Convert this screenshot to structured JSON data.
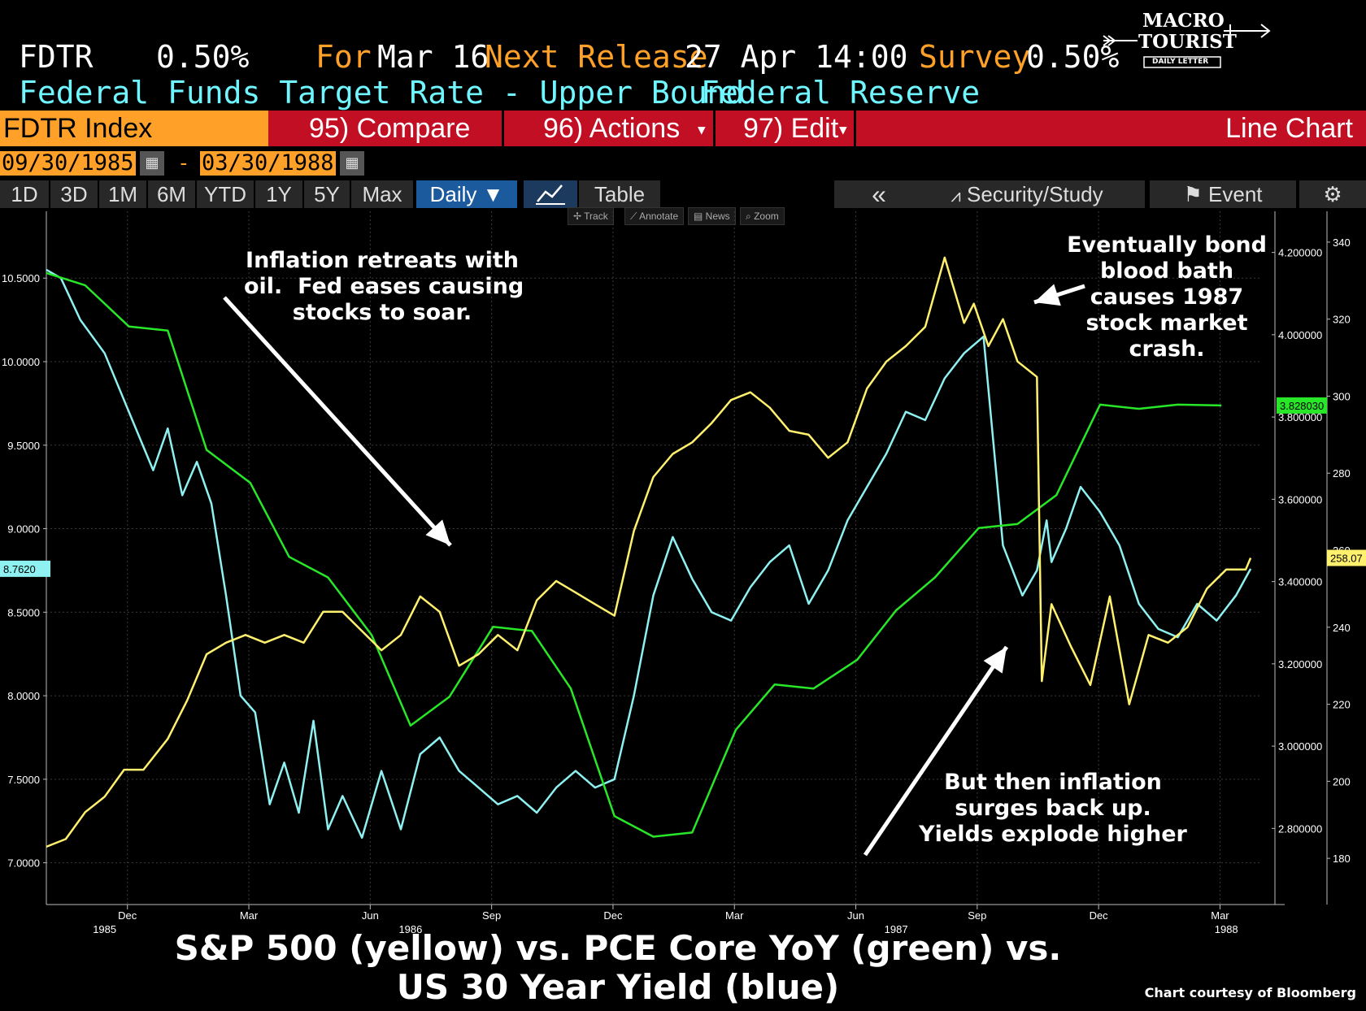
{
  "header": {
    "ticker": "FDTR",
    "value": "0.50%",
    "for_label": "For",
    "for_date": "Mar 16",
    "next_label": "Next Release",
    "next_value": "27 Apr 14:00",
    "survey_label": "Survey",
    "survey_value": "0.50%",
    "description": "Federal Funds Target Rate - Upper Bound",
    "source": "Federal Reserve"
  },
  "logo": {
    "line1": "MACRO",
    "line2": "TOURIST",
    "line3": "DAILY LETTER"
  },
  "command_bar": {
    "index": "FDTR Index",
    "compare": "95) Compare",
    "actions": "96) Actions",
    "edit": "97) Edit",
    "chart_type": "Line Chart"
  },
  "date_range": {
    "start": "09/30/1985",
    "dash": "-",
    "end": "03/30/1988"
  },
  "toolbar": {
    "periods": [
      "1D",
      "3D",
      "1M",
      "6M",
      "YTD",
      "1Y",
      "5Y",
      "Max"
    ],
    "frequency": "Daily ▼",
    "table": "Table",
    "back": "«",
    "security_study": "Security/Study",
    "event": "Event"
  },
  "mini_tools": [
    "Track",
    "Annotate",
    "News",
    "Zoom"
  ],
  "annotations": {
    "a1": "Inflation retreats with\noil.  Fed eases causing\nstocks to soar.",
    "a2": "Eventually bond\nblood bath\ncauses 1987\nstock market\ncrash.",
    "a3": "But then inflation\nsurges back up.\nYields explode higher"
  },
  "caption": {
    "line1": "S&P 500 (yellow) vs. PCE Core YoY (green) vs.",
    "line2": "US 30 Year Yield (blue)"
  },
  "credit": "Chart courtesy of Bloomberg",
  "colors": {
    "yellow": "#fff06e",
    "green": "#28e628",
    "blue": "#8ef0f0",
    "orange": "#ffa028",
    "red": "#c30f23"
  },
  "chart_data": {
    "type": "line",
    "title": "S&P 500 (yellow) vs. PCE Core YoY (green) vs. US 30 Year Yield (blue)",
    "x_range": [
      1985.75,
      1988.25
    ],
    "x_ticks": [
      {
        "x": 1985.917,
        "label": "Dec"
      },
      {
        "x": 1986.167,
        "label": "Mar"
      },
      {
        "x": 1986.417,
        "label": "Jun"
      },
      {
        "x": 1986.667,
        "label": "Sep"
      },
      {
        "x": 1986.917,
        "label": "Dec"
      },
      {
        "x": 1987.167,
        "label": "Mar"
      },
      {
        "x": 1987.417,
        "label": "Jun"
      },
      {
        "x": 1987.667,
        "label": "Sep"
      },
      {
        "x": 1987.917,
        "label": "Dec"
      },
      {
        "x": 1988.167,
        "label": "Mar"
      }
    ],
    "year_labels": [
      {
        "x": 1985.87,
        "label": "1985"
      },
      {
        "x": 1986.5,
        "label": "1986"
      },
      {
        "x": 1987.5,
        "label": "1987"
      },
      {
        "x": 1988.18,
        "label": "1988"
      }
    ],
    "left_axis": {
      "range": [
        6.75,
        10.9
      ],
      "ticks": [
        7.0,
        7.5,
        8.0,
        8.5,
        9.0,
        9.5,
        10.0,
        10.5
      ],
      "labels": [
        "7.0000",
        "7.5000",
        "8.0000",
        "8.5000",
        "9.0000",
        "9.5000",
        "10.0000",
        "10.5000"
      ]
    },
    "mid_axis": {
      "range": [
        2.615,
        4.3
      ],
      "ticks": [
        2.8,
        3.0,
        3.2,
        3.4,
        3.6,
        3.8,
        4.0,
        4.2
      ],
      "labels": [
        "2.800000",
        "3.000000",
        "3.200000",
        "3.400000",
        "3.600000",
        "3.800000",
        "4.000000",
        "4.200000"
      ]
    },
    "right_axis": {
      "range": [
        168,
        348
      ],
      "ticks": [
        180,
        200,
        220,
        240,
        260,
        280,
        300,
        320,
        340
      ],
      "labels": [
        "180",
        "200",
        "220",
        "240",
        "260",
        "280",
        "300",
        "320",
        "340"
      ]
    },
    "last_value_tags": {
      "blue": "8.7620",
      "green": "3.828030",
      "yellow": "258.07"
    },
    "series": [
      {
        "name": "US 30 Year Yield",
        "color": "blue",
        "axis": "left",
        "x": [
          1985.75,
          1985.78,
          1985.82,
          1985.87,
          1985.92,
          1985.97,
          1986.0,
          1986.03,
          1986.06,
          1986.09,
          1986.12,
          1986.15,
          1986.18,
          1986.21,
          1986.24,
          1986.27,
          1986.3,
          1986.33,
          1986.36,
          1986.4,
          1986.44,
          1986.48,
          1986.52,
          1986.56,
          1986.6,
          1986.64,
          1986.68,
          1986.72,
          1986.76,
          1986.8,
          1986.84,
          1986.88,
          1986.92,
          1986.96,
          1987.0,
          1987.04,
          1987.08,
          1987.12,
          1987.16,
          1987.2,
          1987.24,
          1987.28,
          1987.32,
          1987.36,
          1987.4,
          1987.44,
          1987.48,
          1987.52,
          1987.56,
          1987.6,
          1987.64,
          1987.68,
          1987.72,
          1987.76,
          1987.79,
          1987.81,
          1987.82,
          1987.85,
          1987.88,
          1987.92,
          1987.96,
          1988.0,
          1988.04,
          1988.08,
          1988.12,
          1988.16,
          1988.2,
          1988.23
        ],
        "values": [
          10.55,
          10.5,
          10.25,
          10.05,
          9.7,
          9.35,
          9.6,
          9.2,
          9.4,
          9.15,
          8.6,
          8.0,
          7.9,
          7.35,
          7.6,
          7.3,
          7.85,
          7.2,
          7.4,
          7.15,
          7.55,
          7.2,
          7.65,
          7.75,
          7.55,
          7.45,
          7.35,
          7.4,
          7.3,
          7.45,
          7.55,
          7.45,
          7.5,
          8.0,
          8.6,
          8.95,
          8.7,
          8.5,
          8.45,
          8.65,
          8.8,
          8.9,
          8.55,
          8.75,
          9.05,
          9.25,
          9.45,
          9.7,
          9.65,
          9.9,
          10.05,
          10.15,
          8.9,
          8.6,
          8.75,
          9.05,
          8.8,
          9.0,
          9.25,
          9.1,
          8.9,
          8.55,
          8.4,
          8.35,
          8.55,
          8.45,
          8.6,
          8.76
        ]
      },
      {
        "name": "PCE Core YoY",
        "color": "green",
        "axis": "mid",
        "x": [
          1985.75,
          1985.83,
          1985.92,
          1986.0,
          1986.08,
          1986.17,
          1986.25,
          1986.33,
          1986.42,
          1986.5,
          1986.58,
          1986.67,
          1986.75,
          1986.83,
          1986.92,
          1987.0,
          1987.08,
          1987.17,
          1987.25,
          1987.33,
          1987.42,
          1987.5,
          1987.58,
          1987.67,
          1987.75,
          1987.83,
          1987.92,
          1988.0,
          1988.08,
          1988.17
        ],
        "values": [
          4.15,
          4.12,
          4.02,
          4.01,
          3.72,
          3.64,
          3.46,
          3.41,
          3.27,
          3.05,
          3.12,
          3.29,
          3.28,
          3.14,
          2.83,
          2.78,
          2.79,
          3.04,
          3.15,
          3.14,
          3.21,
          3.33,
          3.41,
          3.53,
          3.54,
          3.61,
          3.83,
          3.82,
          3.83,
          3.828
        ]
      },
      {
        "name": "S&P 500",
        "color": "yellow",
        "axis": "right",
        "x": [
          1985.75,
          1985.79,
          1985.83,
          1985.87,
          1985.91,
          1985.95,
          1986.0,
          1986.04,
          1986.08,
          1986.12,
          1986.16,
          1986.2,
          1986.24,
          1986.28,
          1986.32,
          1986.36,
          1986.4,
          1986.44,
          1986.48,
          1986.52,
          1986.56,
          1986.6,
          1986.64,
          1986.68,
          1986.72,
          1986.76,
          1986.8,
          1986.84,
          1986.88,
          1986.92,
          1986.96,
          1987.0,
          1987.04,
          1987.08,
          1987.12,
          1987.16,
          1987.2,
          1987.24,
          1987.28,
          1987.32,
          1987.36,
          1987.4,
          1987.44,
          1987.48,
          1987.52,
          1987.56,
          1987.6,
          1987.64,
          1987.66,
          1987.69,
          1987.72,
          1987.75,
          1987.79,
          1987.8,
          1987.82,
          1987.86,
          1987.9,
          1987.94,
          1987.98,
          1988.02,
          1988.06,
          1988.1,
          1988.14,
          1988.18,
          1988.22,
          1988.23
        ],
        "values": [
          183,
          185,
          192,
          196,
          203,
          203,
          211,
          221,
          233,
          236,
          238,
          236,
          238,
          236,
          244,
          244,
          239,
          234,
          238,
          248,
          244,
          230,
          233,
          238,
          234,
          247,
          252,
          249,
          246,
          243,
          265,
          279,
          285,
          288,
          293,
          299,
          301,
          297,
          291,
          290,
          284,
          288,
          302,
          309,
          313,
          318,
          336,
          319,
          324,
          313,
          320,
          309,
          305,
          226,
          246,
          235,
          225,
          248,
          220,
          238,
          236,
          240,
          250,
          255,
          255,
          258
        ]
      }
    ]
  }
}
